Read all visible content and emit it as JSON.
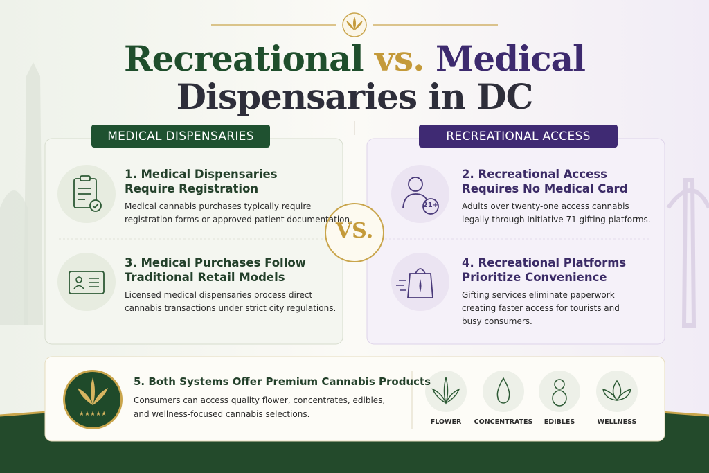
{
  "title": {
    "line1": [
      {
        "text": "Recreational",
        "color": "#1f4e2c"
      },
      {
        "text": "vs.",
        "color": "#c49a3a"
      },
      {
        "text": "Medical",
        "color": "#3d2a6e"
      }
    ],
    "line2": "Dispensaries in DC"
  },
  "vs": "VS.",
  "medical": {
    "header": "MEDICAL DISPENSARIES",
    "items": [
      {
        "heading": [
          "1. Medical Dispensaries",
          "Require Registration"
        ],
        "body": [
          "Medical cannabis purchases typically require",
          "registration forms or approved patient documentation."
        ]
      },
      {
        "heading": [
          "3. Medical Purchases Follow",
          "Traditional Retail Models"
        ],
        "body": [
          "Licensed medical dispensaries process direct",
          "cannabis transactions under strict city regulations."
        ]
      }
    ]
  },
  "recreational": {
    "header": "RECREATIONAL ACCESS",
    "badge": "21+",
    "items": [
      {
        "heading": [
          "2. Recreational Access",
          "Requires No Medical Card"
        ],
        "body": [
          "Adults over twenty-one access cannabis",
          "legally through Initiative 71 gifting platforms."
        ]
      },
      {
        "heading": [
          "4. Recreational Platforms",
          "Prioritize Convenience"
        ],
        "body": [
          "Gifting services eliminate paperwork",
          "creating faster access for tourists and",
          "busy consumers."
        ]
      }
    ]
  },
  "both": {
    "heading": "5. Both Systems Offer Premium Cannabis Products",
    "body": [
      "Consumers can access quality flower, concentrates, edibles,",
      "and wellness-focused cannabis selections."
    ],
    "products": [
      "FLOWER",
      "CONCENTRATES",
      "EDIBLES",
      "WELLNESS"
    ]
  }
}
